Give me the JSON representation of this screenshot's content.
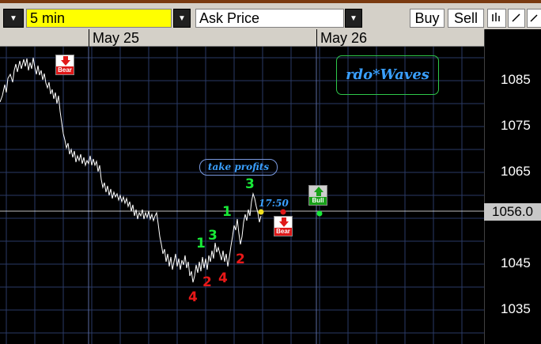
{
  "toolbar": {
    "interval_value": "5 min",
    "price_type_value": "Ask Price",
    "buy_label": "Buy",
    "sell_label": "Sell"
  },
  "time_axis": {
    "labels": [
      "May 25",
      "May 26"
    ]
  },
  "price_axis": {
    "labels": [
      "1085",
      "1075",
      "1065",
      "1045",
      "1035"
    ]
  },
  "current_price": "1056.0",
  "watermark": "rdo*Waves",
  "callout": "take profits",
  "timestamp": "17:50",
  "signals": {
    "bear": "Bear",
    "bull": "Bull"
  },
  "wave_labels": {
    "green": [
      "1",
      "3",
      "1",
      "3"
    ],
    "red": [
      "4",
      "2",
      "4",
      "2"
    ]
  },
  "colors": {
    "price_line": "#ffffff",
    "grid": "#2a3a66",
    "wave_up": "#18e838",
    "wave_down": "#e81818",
    "annotation": "#3aa0ff",
    "logo_border": "#2ec84a"
  }
}
